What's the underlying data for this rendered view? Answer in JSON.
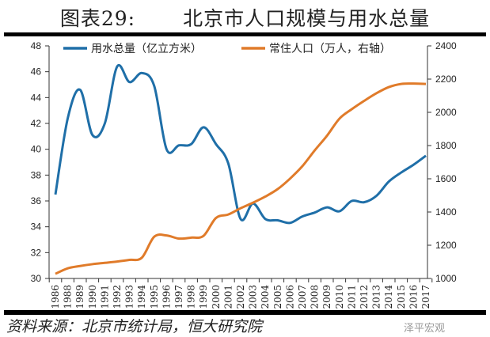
{
  "header": {
    "figure_no": "图表29:",
    "title": "北京市人口规模与用水总量"
  },
  "source": "资料来源：北京市统计局，恒大研究院",
  "watermark": "泽平宏观",
  "chart_data": {
    "type": "line",
    "title": "北京市人口规模与用水总量",
    "categories": [
      "1986",
      "1988",
      "1989",
      "1990",
      "1991",
      "1992",
      "1993",
      "1994",
      "1995",
      "1996",
      "1997",
      "1998",
      "1999",
      "2000",
      "2001",
      "2002",
      "2003",
      "2004",
      "2005",
      "2006",
      "2007",
      "2008",
      "2009",
      "2010",
      "2011",
      "2012",
      "2013",
      "2014",
      "2015",
      "2016",
      "2017"
    ],
    "left_axis": {
      "ylim": [
        30,
        48
      ],
      "ticks": [
        30,
        32,
        34,
        36,
        38,
        40,
        42,
        44,
        46,
        48
      ]
    },
    "right_axis": {
      "ylim": [
        1000,
        2400
      ],
      "ticks": [
        1000,
        1200,
        1400,
        1600,
        1800,
        2000,
        2200,
        2400
      ]
    },
    "legend_position": "top",
    "grid": false,
    "series": [
      {
        "name": "用水总量（亿立方米）",
        "axis": "left",
        "color": "#1f6fa8",
        "values": [
          36.5,
          42.4,
          44.6,
          41.1,
          42.0,
          46.4,
          45.2,
          45.9,
          44.9,
          40.0,
          40.3,
          40.4,
          41.7,
          40.4,
          38.9,
          34.6,
          35.8,
          34.6,
          34.5,
          34.3,
          34.8,
          35.1,
          35.5,
          35.2,
          36.0,
          35.9,
          36.4,
          37.5,
          38.2,
          38.8,
          39.5
        ]
      },
      {
        "name": "常住人口（万人，右轴）",
        "axis": "right",
        "color": "#e07b2a",
        "values": [
          1028,
          1061,
          1075,
          1086,
          1094,
          1102,
          1112,
          1125,
          1251,
          1259,
          1240,
          1246,
          1257,
          1364,
          1385,
          1423,
          1456,
          1493,
          1538,
          1601,
          1676,
          1771,
          1860,
          1962,
          2019,
          2069,
          2115,
          2152,
          2171,
          2173,
          2171
        ]
      }
    ]
  }
}
